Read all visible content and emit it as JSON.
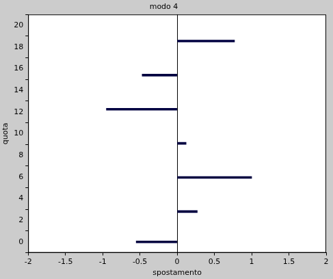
{
  "chart_data": {
    "type": "bar",
    "orientation": "horizontal",
    "title": "modo 4",
    "x_label": "spostamento",
    "y_label": "quota",
    "x": [
      0,
      2.8,
      5.95,
      9.1,
      12.25,
      15.4,
      18.55
    ],
    "values": [
      -0.55,
      0.27,
      1.0,
      0.12,
      -0.95,
      -0.47,
      0.77
    ],
    "color": "#000040",
    "xlim": [
      -2,
      2
    ],
    "xticks": [
      -2,
      -1.5,
      -1,
      -0.5,
      0,
      0.5,
      1,
      1.5,
      2
    ],
    "ylim": [
      0,
      20
    ],
    "yticks": [
      0,
      2,
      4,
      6,
      8,
      10,
      12,
      14,
      16,
      18,
      20
    ],
    "grid": false
  }
}
